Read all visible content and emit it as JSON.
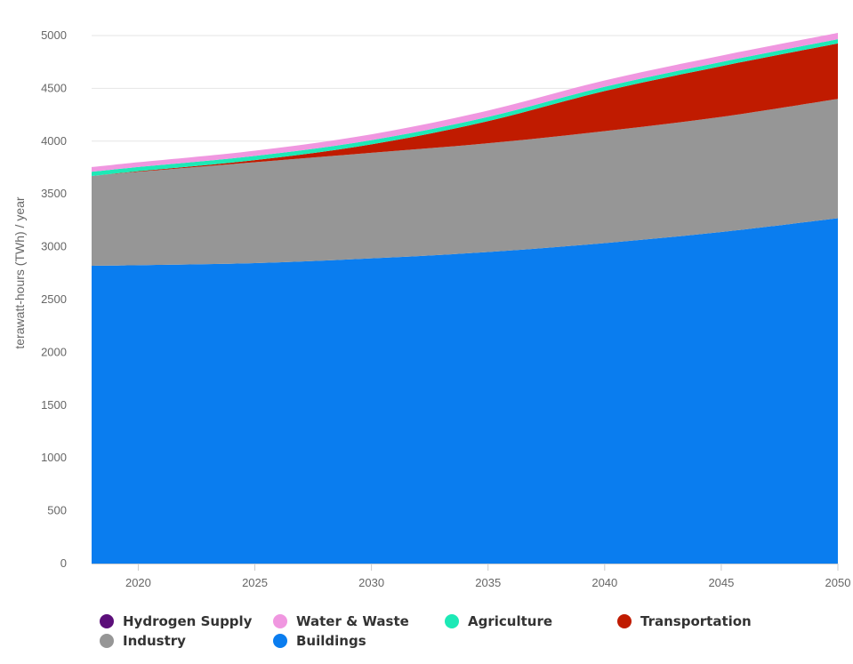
{
  "chart_data": {
    "type": "area",
    "stacked": true,
    "ylabel": "terawatt-hours (TWh) / year",
    "xlabel": "",
    "title": "",
    "xlim": [
      2018,
      2050
    ],
    "ylim": [
      0,
      5000
    ],
    "yticks": [
      0,
      500,
      1000,
      1500,
      2000,
      2500,
      3000,
      3500,
      4000,
      4500,
      5000
    ],
    "xticks": [
      2020,
      2025,
      2030,
      2035,
      2040,
      2045,
      2050
    ],
    "x": [
      2018,
      2020,
      2025,
      2030,
      2035,
      2040,
      2045,
      2050
    ],
    "grid": "horizontal",
    "legend_position": "bottom",
    "series": [
      {
        "name": "Buildings",
        "color": "#0a7def",
        "values": [
          2820,
          2825,
          2845,
          2890,
          2950,
          3035,
          3140,
          3270
        ]
      },
      {
        "name": "Industry",
        "color": "#969696",
        "values": [
          850,
          885,
          955,
          1000,
          1030,
          1060,
          1090,
          1130
        ]
      },
      {
        "name": "Transportation",
        "color": "#c01b00",
        "values": [
          0,
          5,
          20,
          80,
          210,
          380,
          480,
          525
        ]
      },
      {
        "name": "Agriculture",
        "color": "#1de9b6",
        "values": [
          40,
          40,
          40,
          40,
          40,
          40,
          40,
          40
        ]
      },
      {
        "name": "Water & Waste",
        "color": "#f097e0",
        "values": [
          45,
          45,
          50,
          55,
          60,
          60,
          60,
          60
        ]
      },
      {
        "name": "Hydrogen Supply",
        "color": "#5c0f7a",
        "values": [
          0,
          0,
          0,
          0,
          0,
          0,
          0,
          0
        ]
      }
    ],
    "legend_order": [
      "Hydrogen Supply",
      "Water & Waste",
      "Agriculture",
      "Transportation",
      "Industry",
      "Buildings"
    ]
  }
}
